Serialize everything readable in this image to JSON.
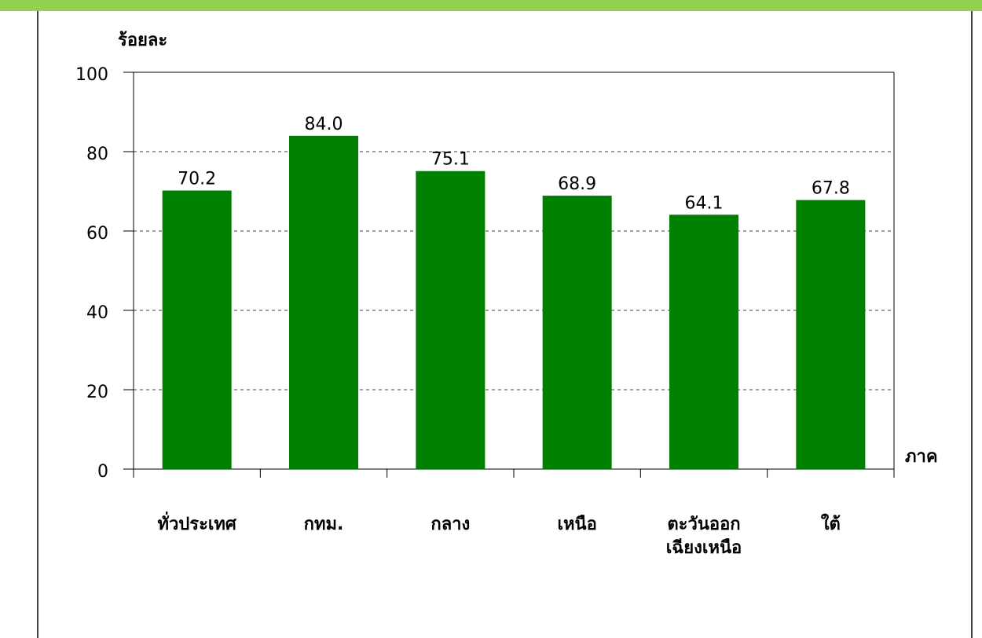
{
  "chart_data": {
    "type": "bar",
    "y_axis_label": "ร้อยละ",
    "x_axis_label": "ภาค",
    "categories": [
      "ทั่วประเทศ",
      "กทม.",
      "กลาง",
      "เหนือ",
      "ตะวันออก\nเฉียงเหนือ",
      "ใต้"
    ],
    "values": [
      70.2,
      84,
      75.1,
      68.9,
      64.1,
      67.8
    ],
    "value_labels": [
      "70.2",
      "84.0",
      "75.1",
      "68.9",
      "64.1",
      "67.8"
    ],
    "color": "#008000",
    "ylim": [
      0,
      100
    ],
    "yticks": [
      0,
      20,
      40,
      60,
      80,
      100
    ],
    "grid": true
  }
}
